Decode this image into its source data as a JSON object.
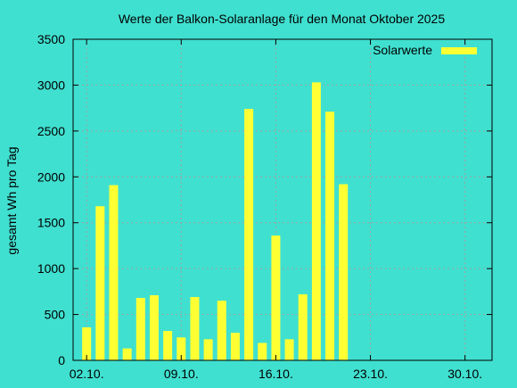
{
  "chart_data": {
    "type": "bar",
    "title": "Werte der Balkon-Solaranlage für den Monat Oktober 2025",
    "xlabel": "",
    "ylabel": "gesamt Wh pro Tag",
    "ylim": [
      0,
      3500
    ],
    "yticks": [
      0,
      500,
      1000,
      1500,
      2000,
      2500,
      3000,
      3500
    ],
    "xlim": [
      1,
      32
    ],
    "xticks": [
      {
        "day": 2,
        "label": "02.10."
      },
      {
        "day": 9,
        "label": "09.10."
      },
      {
        "day": 16,
        "label": "16.10."
      },
      {
        "day": 23,
        "label": "23.10."
      },
      {
        "day": 30,
        "label": "30.10."
      }
    ],
    "grid": true,
    "legend_position": "top-right",
    "series": [
      {
        "name": "Solarwerte",
        "color": "#ffff33",
        "days": [
          2,
          3,
          4,
          5,
          6,
          7,
          8,
          9,
          10,
          11,
          12,
          13,
          14,
          15,
          16,
          17,
          18,
          19,
          20,
          21
        ],
        "values": [
          360,
          1680,
          1910,
          130,
          680,
          710,
          320,
          250,
          690,
          230,
          650,
          300,
          2740,
          190,
          1360,
          230,
          720,
          3030,
          2710,
          1920
        ]
      }
    ]
  }
}
